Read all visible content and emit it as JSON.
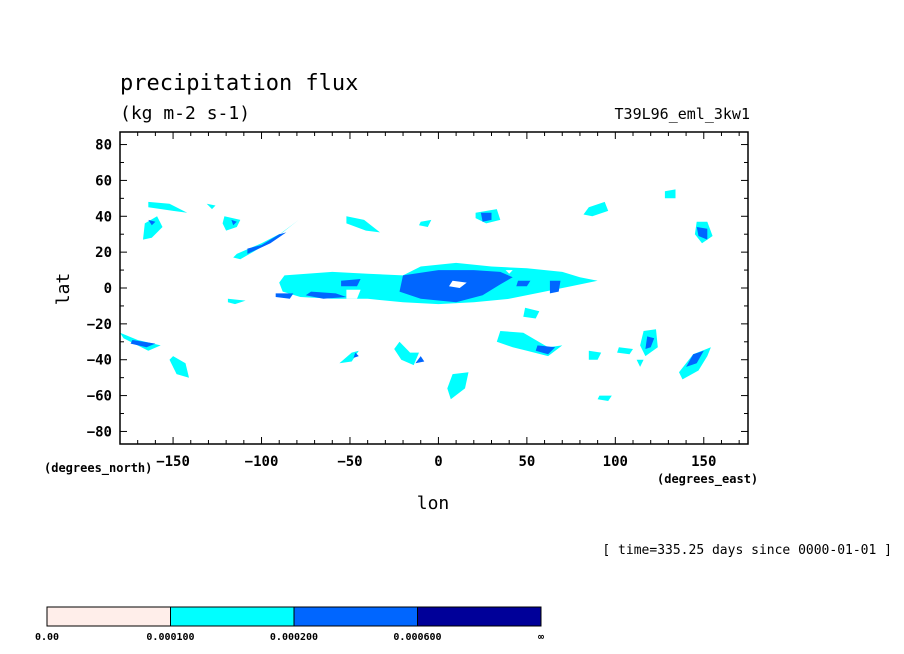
{
  "chart_data": {
    "type": "contour",
    "title": "precipitation flux",
    "units": "(kg m-2 s-1)",
    "run_name": "T39L96_eml_3kw1",
    "xlabel": "lon",
    "ylabel": "lat",
    "x_units": "(degrees_east)",
    "y_units": "(degrees_north)",
    "xlim": [
      -180,
      175
    ],
    "ylim": [
      -87,
      87
    ],
    "x_ticks": [
      -150,
      -100,
      -50,
      0,
      50,
      100,
      150
    ],
    "y_ticks": [
      80,
      60,
      40,
      20,
      0,
      -20,
      -40,
      -60,
      -80
    ],
    "time_label": "[ time=335.25 days since 0000-01-01 ]",
    "colorbar": {
      "labels": [
        "0.00",
        "0.000100",
        "0.000200",
        "0.000600",
        "∞"
      ],
      "colors": [
        "#ffeeea",
        "#00ffff",
        "#0066ff",
        "#000099"
      ]
    },
    "levels": [
      {
        "name": "0.000100",
        "color": "#00ffff",
        "regions": [
          [
            [
              -87,
              7
            ],
            [
              -60,
              9
            ],
            [
              -40,
              8
            ],
            [
              -20,
              7
            ],
            [
              -10,
              12
            ],
            [
              10,
              14
            ],
            [
              30,
              12
            ],
            [
              50,
              11
            ],
            [
              70,
              9
            ],
            [
              80,
              6
            ],
            [
              90,
              4
            ],
            [
              75,
              1
            ],
            [
              60,
              -2
            ],
            [
              40,
              -6
            ],
            [
              20,
              -8
            ],
            [
              0,
              -9
            ],
            [
              -20,
              -8
            ],
            [
              -40,
              -6
            ],
            [
              -60,
              -6
            ],
            [
              -78,
              -5
            ],
            [
              -88,
              -2
            ],
            [
              -90,
              3
            ]
          ],
          [
            [
              -114,
              19
            ],
            [
              -100,
              25
            ],
            [
              -88,
              31
            ],
            [
              -79,
              38
            ],
            [
              -83,
              35
            ],
            [
              -98,
              24
            ],
            [
              -112,
              16
            ],
            [
              -116,
              17
            ]
          ],
          [
            [
              -164,
              48
            ],
            [
              -152,
              47
            ],
            [
              -142,
              42
            ],
            [
              -150,
              43
            ],
            [
              -164,
              45
            ]
          ],
          [
            [
              -166,
              36
            ],
            [
              -159,
              40
            ],
            [
              -156,
              34
            ],
            [
              -162,
              28
            ],
            [
              -167,
              27
            ]
          ],
          [
            [
              -121,
              40
            ],
            [
              -112,
              38
            ],
            [
              -114,
              34
            ],
            [
              -120,
              32
            ],
            [
              -122,
              36
            ]
          ],
          [
            [
              -52,
              40
            ],
            [
              -42,
              38
            ],
            [
              -33,
              31
            ],
            [
              -41,
              32
            ],
            [
              -52,
              36
            ]
          ],
          [
            [
              21,
              42
            ],
            [
              33,
              44
            ],
            [
              35,
              38
            ],
            [
              27,
              36
            ],
            [
              21,
              39
            ]
          ],
          [
            [
              85,
              45
            ],
            [
              94,
              48
            ],
            [
              96,
              43
            ],
            [
              87,
              40
            ],
            [
              82,
              41
            ]
          ],
          [
            [
              146,
              37
            ],
            [
              152,
              37
            ],
            [
              155,
              29
            ],
            [
              149,
              25
            ],
            [
              145,
              30
            ]
          ],
          [
            [
              -180,
              -25
            ],
            [
              -170,
              -29
            ],
            [
              -157,
              -32
            ],
            [
              -164,
              -35
            ],
            [
              -178,
              -28
            ]
          ],
          [
            [
              -150,
              -38
            ],
            [
              -143,
              -42
            ],
            [
              -141,
              -50
            ],
            [
              -148,
              -48
            ],
            [
              -152,
              -40
            ]
          ],
          [
            [
              -56,
              -42
            ],
            [
              -49,
              -36
            ],
            [
              -45,
              -35
            ],
            [
              -49,
              -41
            ]
          ],
          [
            [
              -22,
              -30
            ],
            [
              -16,
              -36
            ],
            [
              -11,
              -36
            ],
            [
              -14,
              -43
            ],
            [
              -21,
              -40
            ],
            [
              -25,
              -34
            ]
          ],
          [
            [
              35,
              -24
            ],
            [
              48,
              -25
            ],
            [
              55,
              -29
            ],
            [
              62,
              -33
            ],
            [
              70,
              -32
            ],
            [
              62,
              -38
            ],
            [
              50,
              -35
            ],
            [
              42,
              -33
            ],
            [
              33,
              -30
            ]
          ],
          [
            [
              116,
              -24
            ],
            [
              123,
              -23
            ],
            [
              124,
              -33
            ],
            [
              117,
              -38
            ],
            [
              114,
              -32
            ]
          ],
          [
            [
              144,
              -37
            ],
            [
              154,
              -33
            ],
            [
              152,
              -38
            ],
            [
              147,
              -46
            ],
            [
              138,
              -51
            ],
            [
              136,
              -47
            ]
          ],
          [
            [
              8,
              -48
            ],
            [
              17,
              -47
            ],
            [
              15,
              -56
            ],
            [
              7,
              -62
            ],
            [
              5,
              -56
            ]
          ],
          [
            [
              85,
              -35
            ],
            [
              92,
              -36
            ],
            [
              90,
              -40
            ],
            [
              85,
              -40
            ]
          ],
          [
            [
              102,
              -33
            ],
            [
              110,
              -34
            ],
            [
              108,
              -37
            ],
            [
              101,
              -36
            ]
          ],
          [
            [
              91,
              -60
            ],
            [
              98,
              -60
            ],
            [
              96,
              -63
            ],
            [
              90,
              -62
            ]
          ],
          [
            [
              128,
              54
            ],
            [
              134,
              55
            ],
            [
              134,
              50
            ],
            [
              128,
              50
            ]
          ],
          [
            [
              49,
              -11
            ],
            [
              57,
              -13
            ],
            [
              55,
              -17
            ],
            [
              48,
              -16
            ]
          ],
          [
            [
              -131,
              47
            ],
            [
              -126,
              46
            ],
            [
              -128,
              44
            ]
          ],
          [
            [
              -119,
              -6
            ],
            [
              -109,
              -7
            ],
            [
              -115,
              -9
            ],
            [
              -119,
              -8
            ]
          ],
          [
            [
              -10,
              37
            ],
            [
              -4,
              38
            ],
            [
              -6,
              34
            ],
            [
              -11,
              35
            ]
          ],
          [
            [
              112,
              -40
            ],
            [
              116,
              -40
            ],
            [
              114,
              -44
            ]
          ]
        ]
      },
      {
        "name": "0.000200",
        "color": "#0066ff",
        "regions": [
          [
            [
              -20,
              7
            ],
            [
              0,
              10
            ],
            [
              20,
              10
            ],
            [
              35,
              9
            ],
            [
              42,
              6
            ],
            [
              35,
              2
            ],
            [
              25,
              -4
            ],
            [
              10,
              -8
            ],
            [
              -10,
              -6
            ],
            [
              -22,
              -2
            ]
          ],
          [
            [
              -108,
              19
            ],
            [
              -95,
              25
            ],
            [
              -86,
              31
            ],
            [
              -90,
              30
            ],
            [
              -100,
              24
            ],
            [
              -108,
              22
            ]
          ],
          [
            [
              -72,
              -2
            ],
            [
              -58,
              -3
            ],
            [
              -52,
              -5
            ],
            [
              -65,
              -6
            ],
            [
              -75,
              -4
            ]
          ],
          [
            [
              -92,
              -3
            ],
            [
              -82,
              -3
            ],
            [
              -84,
              -6
            ],
            [
              -92,
              -5
            ]
          ],
          [
            [
              -55,
              4
            ],
            [
              -44,
              5
            ],
            [
              -46,
              1
            ],
            [
              -55,
              1
            ]
          ],
          [
            [
              45,
              4
            ],
            [
              52,
              4
            ],
            [
              50,
              1
            ],
            [
              44,
              1
            ]
          ],
          [
            [
              63,
              4
            ],
            [
              69,
              4
            ],
            [
              68,
              -2
            ],
            [
              63,
              -3
            ]
          ],
          [
            [
              24,
              42
            ],
            [
              30,
              42
            ],
            [
              30,
              38
            ],
            [
              25,
              37
            ]
          ],
          [
            [
              146,
              34
            ],
            [
              152,
              33
            ],
            [
              152,
              27
            ],
            [
              147,
              29
            ]
          ],
          [
            [
              -173,
              -29
            ],
            [
              -160,
              -31
            ],
            [
              -165,
              -33
            ],
            [
              -174,
              -31
            ]
          ],
          [
            [
              56,
              -32
            ],
            [
              66,
              -33
            ],
            [
              62,
              -37
            ],
            [
              55,
              -35
            ]
          ],
          [
            [
              118,
              -27
            ],
            [
              122,
              -28
            ],
            [
              120,
              -33
            ],
            [
              117,
              -34
            ]
          ],
          [
            [
              144,
              -37
            ],
            [
              150,
              -35
            ],
            [
              146,
              -42
            ],
            [
              140,
              -44
            ]
          ],
          [
            [
              -164,
              38
            ],
            [
              -160,
              37
            ],
            [
              -162,
              35
            ]
          ],
          [
            [
              -117,
              38
            ],
            [
              -114,
              37
            ],
            [
              -116,
              35
            ]
          ],
          [
            [
              -47,
              -36
            ],
            [
              -45,
              -38
            ],
            [
              -48,
              -39
            ]
          ],
          [
            [
              -10,
              -38
            ],
            [
              -8,
              -41
            ],
            [
              -13,
              -42
            ]
          ]
        ]
      },
      {
        "name": "0.000600",
        "color": "#000099",
        "regions": []
      },
      {
        "name": "white-gaps",
        "color": "#ffffff",
        "regions": [
          [
            [
              -52,
              -1
            ],
            [
              -44,
              -1
            ],
            [
              -46,
              -6
            ],
            [
              -52,
              -6
            ]
          ],
          [
            [
              8,
              4
            ],
            [
              16,
              3
            ],
            [
              12,
              0
            ],
            [
              6,
              1
            ]
          ],
          [
            [
              38,
              10
            ],
            [
              42,
              10
            ],
            [
              40,
              8
            ]
          ]
        ]
      }
    ]
  }
}
